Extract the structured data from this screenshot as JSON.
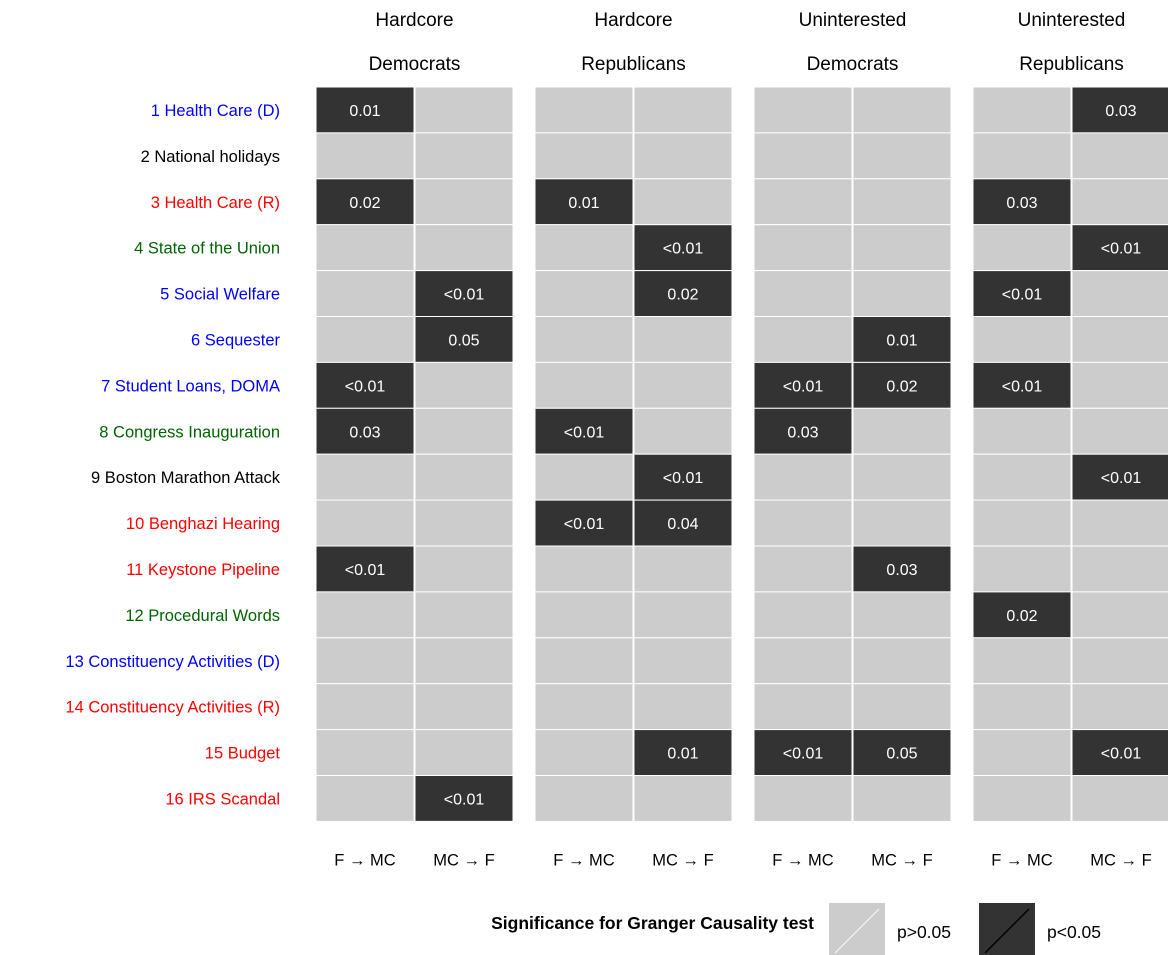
{
  "colors": {
    "not_significant": "#cccccc",
    "significant": "#333333",
    "grid_line": "#ffffff",
    "cell_text": "#ffffff",
    "label_black": "#000000",
    "label_blue": "#0000ff",
    "label_red": "#ff0000",
    "label_green": "#006400"
  },
  "chart_data": {
    "type": "heatmap",
    "facets": [
      {
        "title_line1": "Hardcore",
        "title_line2": "Democrats"
      },
      {
        "title_line1": "Hardcore",
        "title_line2": "Republicans"
      },
      {
        "title_line1": "Uninterested",
        "title_line2": "Democrats"
      },
      {
        "title_line1": "Uninterested",
        "title_line2": "Republicans"
      }
    ],
    "columns": [
      "F → MC",
      "MC → F"
    ],
    "rows": [
      {
        "label": "1 Health Care (D)",
        "color": "blue"
      },
      {
        "label": "2 National holidays",
        "color": "black"
      },
      {
        "label": "3 Health Care (R)",
        "color": "red"
      },
      {
        "label": "4 State of the Union",
        "color": "green"
      },
      {
        "label": "5 Social Welfare",
        "color": "blue"
      },
      {
        "label": "6 Sequester",
        "color": "blue"
      },
      {
        "label": "7 Student Loans, DOMA",
        "color": "blue"
      },
      {
        "label": "8 Congress Inauguration",
        "color": "green"
      },
      {
        "label": "9 Boston Marathon Attack",
        "color": "black"
      },
      {
        "label": "10 Benghazi Hearing",
        "color": "red"
      },
      {
        "label": "11 Keystone Pipeline",
        "color": "red"
      },
      {
        "label": "12 Procedural Words",
        "color": "green"
      },
      {
        "label": "13 Constituency Activities (D)",
        "color": "blue"
      },
      {
        "label": "14 Constituency Activities (R)",
        "color": "red"
      },
      {
        "label": "15 Budget",
        "color": "red"
      },
      {
        "label": "16 IRS Scandal",
        "color": "red"
      }
    ],
    "values": [
      [
        [
          "0.01",
          "",
          "",
          "",
          "",
          "",
          "",
          "0.03"
        ]
      ],
      [
        [
          "",
          "",
          "",
          "",
          "",
          "",
          "",
          ""
        ]
      ],
      [
        [
          "0.02",
          "",
          "0.01",
          "",
          "",
          "",
          "0.03",
          ""
        ]
      ],
      [
        [
          "",
          "",
          "",
          "<0.01",
          "",
          "",
          "",
          "<0.01"
        ]
      ],
      [
        [
          "",
          "<0.01",
          "",
          "0.02",
          "",
          "",
          "<0.01",
          ""
        ]
      ],
      [
        [
          "",
          "0.05",
          "",
          "",
          "",
          "0.01",
          "",
          ""
        ]
      ],
      [
        [
          "<0.01",
          "",
          "",
          "",
          "<0.01",
          "0.02",
          "<0.01",
          ""
        ]
      ],
      [
        [
          "0.03",
          "",
          "<0.01",
          "",
          "0.03",
          "",
          "",
          ""
        ]
      ],
      [
        [
          "",
          "",
          "",
          "<0.01",
          "",
          "",
          "",
          "<0.01"
        ]
      ],
      [
        [
          "",
          "",
          "<0.01",
          "0.04",
          "",
          "",
          "",
          ""
        ]
      ],
      [
        [
          "<0.01",
          "",
          "",
          "",
          "",
          "0.03",
          "",
          ""
        ]
      ],
      [
        [
          "",
          "",
          "",
          "",
          "",
          "",
          "0.02",
          ""
        ]
      ],
      [
        [
          "",
          "",
          "",
          "",
          "",
          "",
          "",
          ""
        ]
      ],
      [
        [
          "",
          "",
          "",
          "",
          "",
          "",
          "",
          ""
        ]
      ],
      [
        [
          "",
          "",
          "",
          "0.01",
          "<0.01",
          "0.05",
          "",
          "<0.01"
        ]
      ],
      [
        [
          "",
          "<0.01",
          "",
          "",
          "",
          "",
          "",
          ""
        ]
      ]
    ],
    "legend": {
      "title": "Significance for Granger Causality test",
      "items": [
        {
          "label": "p>0.05",
          "key": "not_significant"
        },
        {
          "label": "p<0.05",
          "key": "significant"
        }
      ],
      "position": "bottom"
    },
    "grid": true
  }
}
